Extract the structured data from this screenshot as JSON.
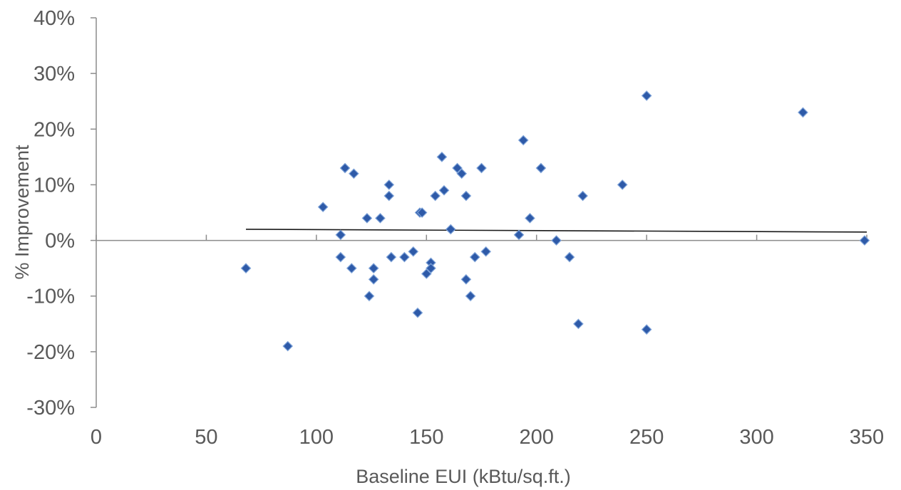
{
  "chart_data": {
    "type": "scatter",
    "xlabel": "Baseline EUI (kBtu/sq.ft.)",
    "ylabel": "% Improvement",
    "xlim": [
      0,
      350
    ],
    "ylim": [
      -30,
      40
    ],
    "x_ticks": [
      0,
      50,
      100,
      150,
      200,
      250,
      300,
      350
    ],
    "y_ticks": [
      -30,
      -20,
      -10,
      0,
      10,
      20,
      30,
      40
    ],
    "x_tick_labels": [
      "0",
      "50",
      "100",
      "150",
      "200",
      "250",
      "300",
      "350"
    ],
    "y_tick_labels": [
      "-30%",
      "-20%",
      "-10%",
      "0%",
      "10%",
      "20%",
      "30%",
      "40%"
    ],
    "grid": false,
    "marker_color": "#2e5aa8",
    "trendline_color": "#1a1a1a",
    "trendline": {
      "x": [
        68,
        350
      ],
      "y": [
        2.0,
        1.5
      ]
    },
    "points": [
      {
        "x": 68,
        "y": -5
      },
      {
        "x": 87,
        "y": -19
      },
      {
        "x": 103,
        "y": 6
      },
      {
        "x": 111,
        "y": 1
      },
      {
        "x": 111,
        "y": -3
      },
      {
        "x": 113,
        "y": 13
      },
      {
        "x": 116,
        "y": -5
      },
      {
        "x": 117,
        "y": 12
      },
      {
        "x": 123,
        "y": 4
      },
      {
        "x": 124,
        "y": -10
      },
      {
        "x": 126,
        "y": -5
      },
      {
        "x": 126,
        "y": -7
      },
      {
        "x": 129,
        "y": 4
      },
      {
        "x": 133,
        "y": 10
      },
      {
        "x": 133,
        "y": 8
      },
      {
        "x": 134,
        "y": -3
      },
      {
        "x": 140,
        "y": -3
      },
      {
        "x": 144,
        "y": -2
      },
      {
        "x": 146,
        "y": -13
      },
      {
        "x": 147,
        "y": 5
      },
      {
        "x": 148,
        "y": 5
      },
      {
        "x": 150,
        "y": -6
      },
      {
        "x": 152,
        "y": -4
      },
      {
        "x": 152,
        "y": -5
      },
      {
        "x": 154,
        "y": 8
      },
      {
        "x": 157,
        "y": 15
      },
      {
        "x": 158,
        "y": 9
      },
      {
        "x": 161,
        "y": 2
      },
      {
        "x": 164,
        "y": 13
      },
      {
        "x": 166,
        "y": 12
      },
      {
        "x": 168,
        "y": 8
      },
      {
        "x": 168,
        "y": -7
      },
      {
        "x": 170,
        "y": -10
      },
      {
        "x": 172,
        "y": -3
      },
      {
        "x": 175,
        "y": 13
      },
      {
        "x": 177,
        "y": -2
      },
      {
        "x": 192,
        "y": 1
      },
      {
        "x": 194,
        "y": 18
      },
      {
        "x": 197,
        "y": 4
      },
      {
        "x": 202,
        "y": 13
      },
      {
        "x": 209,
        "y": 0
      },
      {
        "x": 215,
        "y": -3
      },
      {
        "x": 219,
        "y": -15
      },
      {
        "x": 221,
        "y": 8
      },
      {
        "x": 239,
        "y": 10
      },
      {
        "x": 250,
        "y": 26
      },
      {
        "x": 250,
        "y": -16
      },
      {
        "x": 321,
        "y": 23
      },
      {
        "x": 349,
        "y": 0
      }
    ]
  }
}
